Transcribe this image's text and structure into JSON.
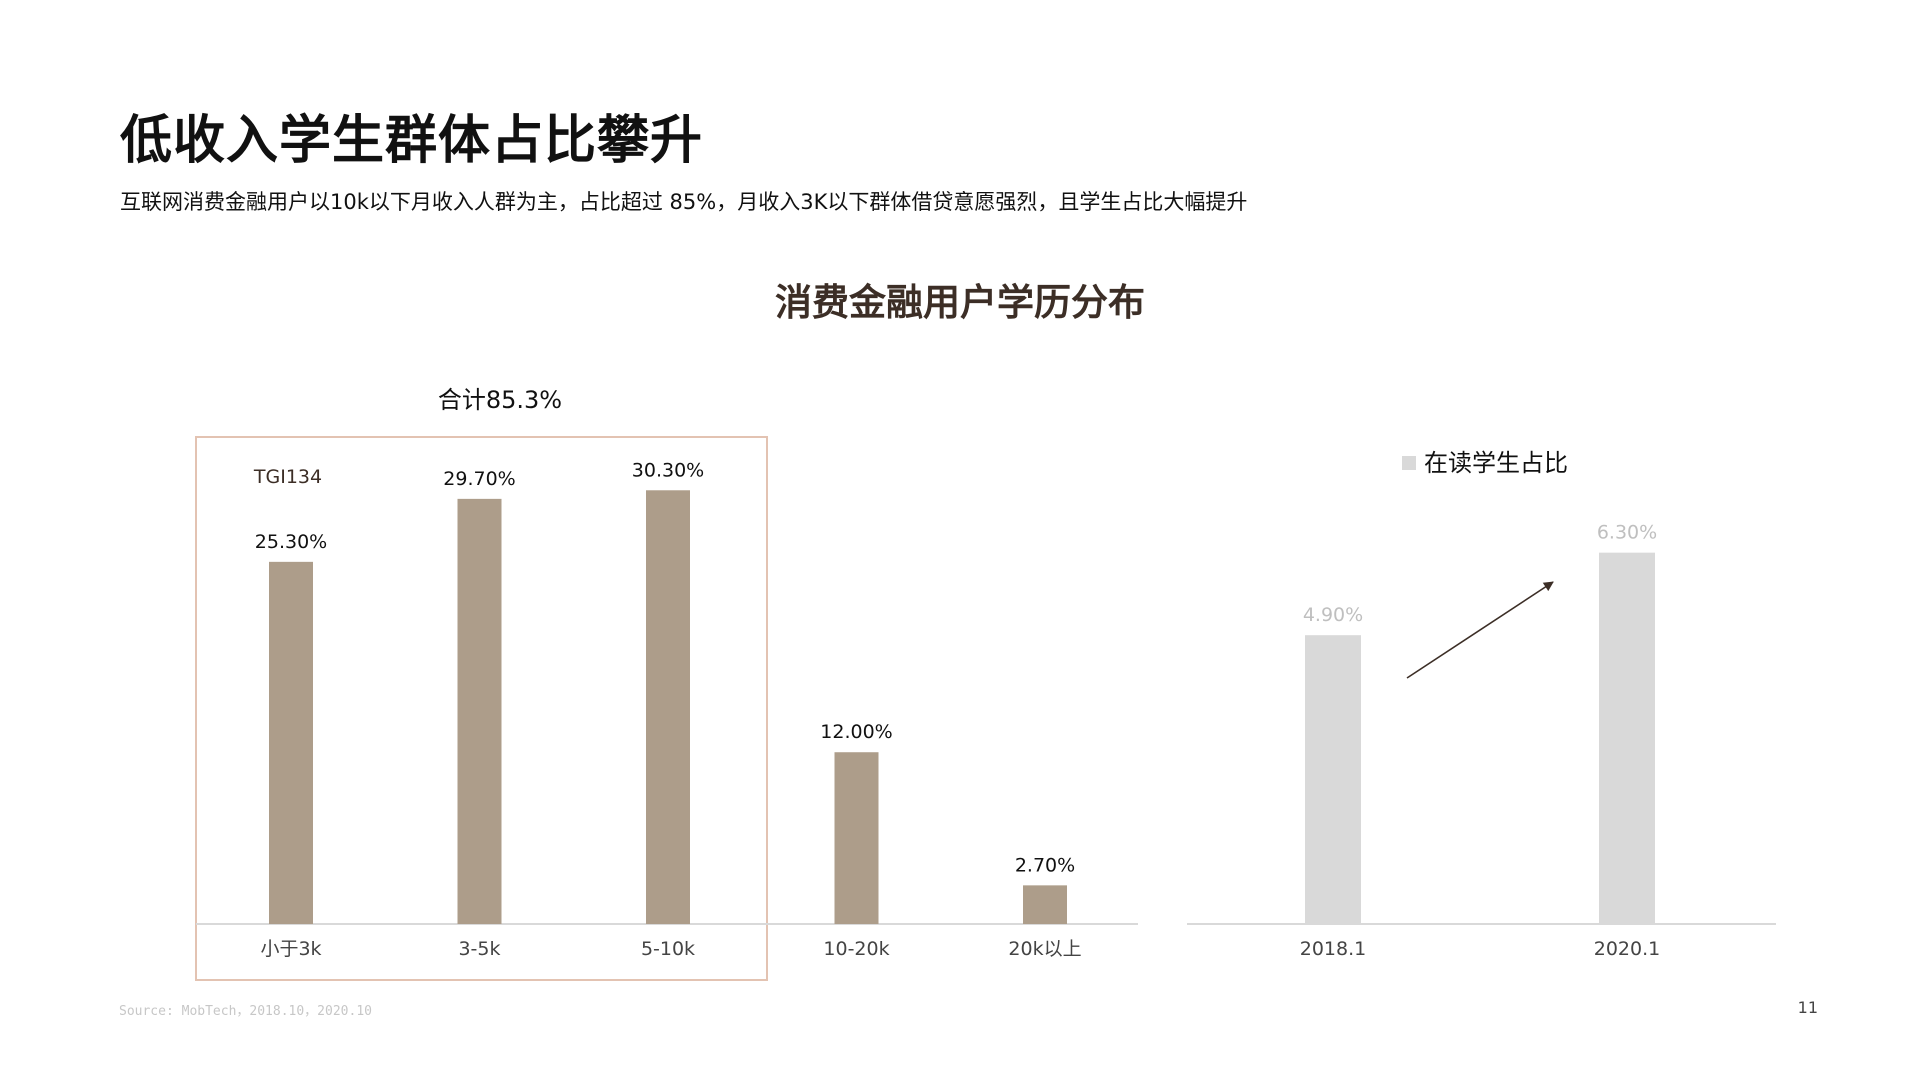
{
  "page": {
    "title": "低收入学生群体占比攀升",
    "subtitle": "互联网消费金融用户以10k以下月收入人群为主，占比超过 85%，月收入3K以下群体借贷意愿强烈，且学生占比大幅提升",
    "chart_title": "消费金融用户学历分布",
    "source": "Source: MobTech，2018.10，2020.10",
    "page_number": "11"
  },
  "colors": {
    "income_bar": "#ad9d8a",
    "student_bar": "#d9d9d9",
    "highlight_box": "#e3c3b2",
    "axis_line": "#d9d9d9",
    "arrow": "#3c2e26",
    "student_label": "#bfbfbf"
  },
  "chart_data": [
    {
      "type": "bar",
      "categories": [
        "小于3k",
        "3-5k",
        "5-10k",
        "10-20k",
        "20k以上"
      ],
      "values": [
        25.3,
        29.7,
        30.3,
        12.0,
        2.7
      ],
      "data_labels": [
        "25.30%",
        "29.70%",
        "30.30%",
        "12.00%",
        "2.70%"
      ],
      "ylim": [
        0,
        35
      ],
      "annotations": {
        "total_label": "合计85.3%",
        "tgi_label": "TGI134"
      }
    },
    {
      "type": "bar",
      "categories": [
        "2018.1",
        "2020.1"
      ],
      "values": [
        4.9,
        6.3
      ],
      "data_labels": [
        "4.90%",
        "6.30%"
      ],
      "ylim": [
        0,
        8.5
      ],
      "legend": {
        "label": "在读学生占比",
        "position": "top"
      }
    }
  ]
}
